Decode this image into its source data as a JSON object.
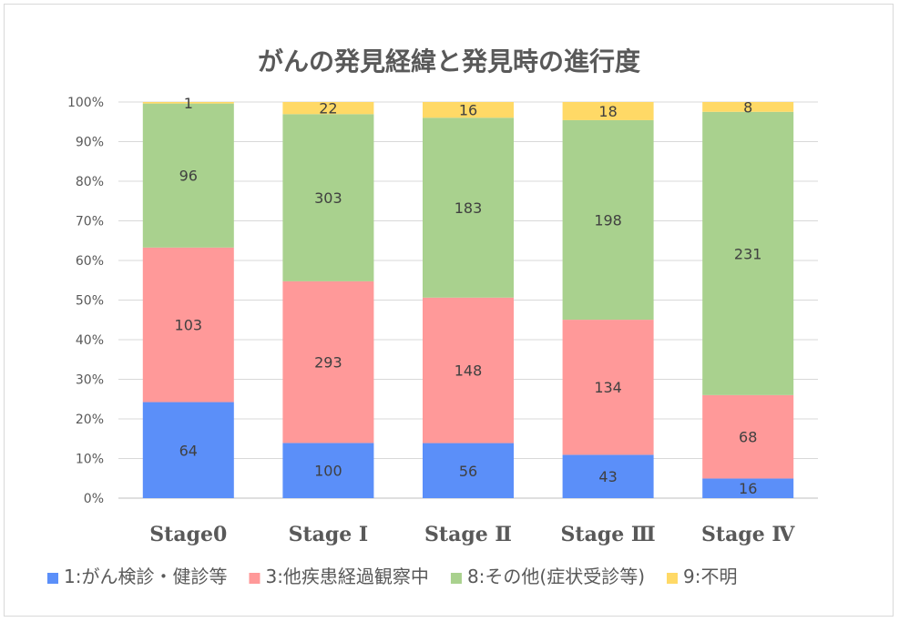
{
  "chart_data": {
    "type": "bar",
    "stacked": "percent",
    "title": "がんの発見経緯と発見時の進行度",
    "xlabel": "",
    "ylabel": "",
    "categories": [
      "Stage0",
      "Stage Ⅰ",
      "Stage Ⅱ",
      "Stage Ⅲ",
      "Stage Ⅳ"
    ],
    "series": [
      {
        "name": "1:がん検診・健診等",
        "color": "#5b8ff9",
        "values": [
          64,
          100,
          56,
          43,
          16
        ]
      },
      {
        "name": "3:他疾患経過観察中",
        "color": "#ff9999",
        "values": [
          103,
          293,
          148,
          134,
          68
        ]
      },
      {
        "name": "8:その他(症状受診等)",
        "color": "#a9d18e",
        "values": [
          96,
          303,
          183,
          198,
          231
        ]
      },
      {
        "name": "9:不明",
        "color": "#ffd966",
        "values": [
          1,
          22,
          16,
          18,
          8
        ]
      }
    ],
    "yticks": [
      "0%",
      "10%",
      "20%",
      "30%",
      "40%",
      "50%",
      "60%",
      "70%",
      "80%",
      "90%",
      "100%"
    ],
    "ylim": [
      0,
      100
    ],
    "grid": true,
    "legend": "bottom"
  }
}
